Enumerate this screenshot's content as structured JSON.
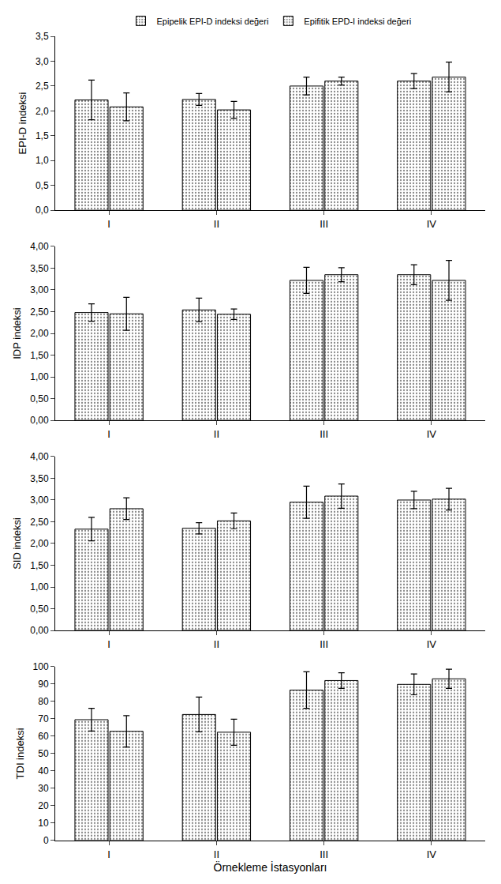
{
  "chart_data": [
    {
      "type": "bar",
      "ylabel": "EPI-D indeksi",
      "legend": "top",
      "grid": false,
      "categories": [
        "I",
        "II",
        "III",
        "IV"
      ],
      "ylim": [
        0,
        3.5
      ],
      "yticks": [
        {
          "value": 0,
          "label": "0,0"
        },
        {
          "value": 0.5,
          "label": "0,5"
        },
        {
          "value": 1,
          "label": "1,0"
        },
        {
          "value": 1.5,
          "label": "1,5"
        },
        {
          "value": 2,
          "label": "2,0"
        },
        {
          "value": 2.5,
          "label": "2,5"
        },
        {
          "value": 3,
          "label": "3,0"
        },
        {
          "value": 3.5,
          "label": "3,5"
        }
      ],
      "series": [
        {
          "name": "Epipelik EPI-D indeksi değeri",
          "color": "#dcdcdc",
          "values": [
            2.22,
            2.23,
            2.5,
            2.6
          ],
          "errors": [
            0.4,
            0.12,
            0.18,
            0.15
          ]
        },
        {
          "name": "Epifitik EPD-I indeksi değeri",
          "color": "#5a5a5a",
          "values": [
            2.08,
            2.02,
            2.6,
            2.68
          ],
          "errors": [
            0.28,
            0.17,
            0.08,
            0.3
          ]
        }
      ]
    },
    {
      "type": "bar",
      "ylabel": "IDP indeksi",
      "grid": false,
      "categories": [
        "I",
        "II",
        "III",
        "IV"
      ],
      "ylim": [
        0,
        4
      ],
      "yticks": [
        {
          "value": 0,
          "label": "0,00"
        },
        {
          "value": 0.5,
          "label": "0,50"
        },
        {
          "value": 1,
          "label": "1,00"
        },
        {
          "value": 1.5,
          "label": "1,50"
        },
        {
          "value": 2,
          "label": "2,00"
        },
        {
          "value": 2.5,
          "label": "2,50"
        },
        {
          "value": 3,
          "label": "3,00"
        },
        {
          "value": 3.5,
          "label": "3,50"
        },
        {
          "value": 4,
          "label": "4,00"
        }
      ],
      "series": [
        {
          "name": "Epipelik EPI-D indeksi değeri",
          "color": "#dcdcdc",
          "values": [
            2.48,
            2.54,
            3.22,
            3.35
          ],
          "errors": [
            0.2,
            0.27,
            0.3,
            0.23
          ]
        },
        {
          "name": "Epifitik EPD-I indeksi değeri",
          "color": "#5a5a5a",
          "values": [
            2.45,
            2.44,
            3.35,
            3.22
          ],
          "errors": [
            0.38,
            0.12,
            0.16,
            0.46
          ]
        }
      ]
    },
    {
      "type": "bar",
      "ylabel": "SID indeksi",
      "grid": false,
      "categories": [
        "I",
        "II",
        "III",
        "IV"
      ],
      "ylim": [
        0,
        4
      ],
      "yticks": [
        {
          "value": 0,
          "label": "0,00"
        },
        {
          "value": 0.5,
          "label": "0,50"
        },
        {
          "value": 1,
          "label": "1,00"
        },
        {
          "value": 1.5,
          "label": "1,50"
        },
        {
          "value": 2,
          "label": "2,00"
        },
        {
          "value": 2.5,
          "label": "2,50"
        },
        {
          "value": 3,
          "label": "3,00"
        },
        {
          "value": 3.5,
          "label": "3,50"
        },
        {
          "value": 4,
          "label": "4,00"
        }
      ],
      "series": [
        {
          "name": "Epipelik EPI-D indeksi değeri",
          "color": "#dcdcdc",
          "values": [
            2.33,
            2.35,
            2.95,
            3.0
          ],
          "errors": [
            0.27,
            0.13,
            0.37,
            0.2
          ]
        },
        {
          "name": "Epifitik EPD-I indeksi değeri",
          "color": "#5a5a5a",
          "values": [
            2.8,
            2.52,
            3.09,
            3.02
          ],
          "errors": [
            0.25,
            0.18,
            0.28,
            0.25
          ]
        }
      ]
    },
    {
      "type": "bar",
      "ylabel": "TDI indeksi",
      "xlabel": "Örnekleme İstasyonları",
      "grid": false,
      "categories": [
        "I",
        "II",
        "III",
        "IV"
      ],
      "ylim": [
        0,
        100
      ],
      "yticks": [
        0,
        10,
        20,
        30,
        40,
        50,
        60,
        70,
        80,
        90,
        100
      ],
      "series": [
        {
          "name": "Epipelik EPI-D indeksi değeri",
          "color": "#dcdcdc",
          "values": [
            69.5,
            72.5,
            86.5,
            89.8
          ],
          "errors": [
            6.5,
            10,
            10.5,
            6
          ]
        },
        {
          "name": "Epifitik EPD-I indeksi değeri",
          "color": "#5a5a5a",
          "values": [
            62.8,
            62.3,
            92,
            93
          ],
          "errors": [
            9,
            7.5,
            4.5,
            5.5
          ]
        }
      ]
    }
  ]
}
